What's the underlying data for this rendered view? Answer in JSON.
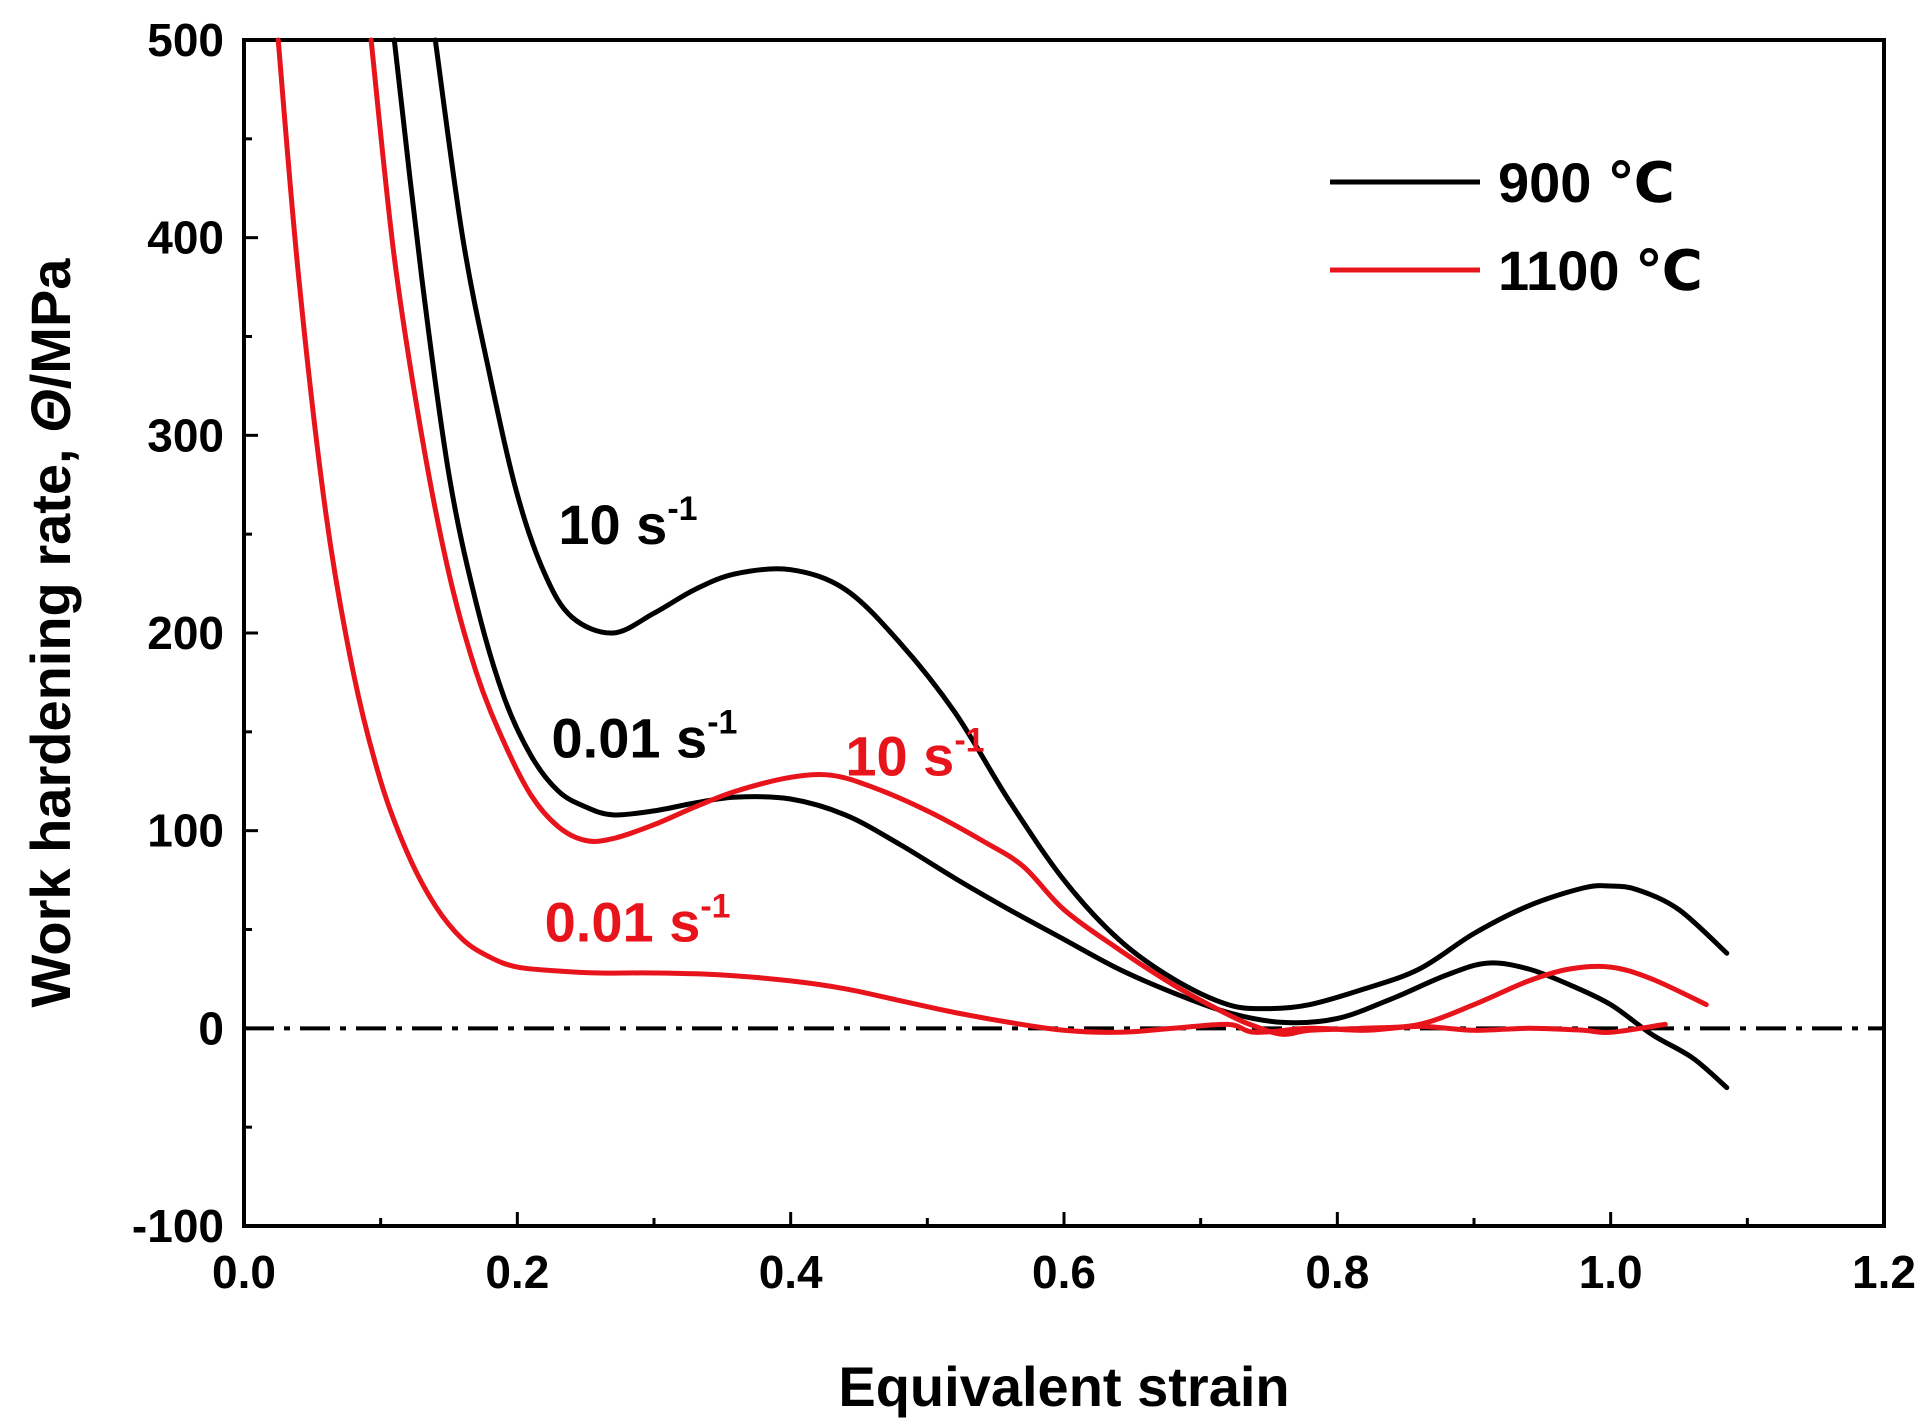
{
  "chart_data": {
    "type": "line",
    "title": "",
    "xlabel": "Equivalent strain",
    "ylabel_prefix": "Work hardening rate, ",
    "ylabel_symbol": "Θ",
    "ylabel_unit": "/MPa",
    "xlim": [
      0.0,
      1.2
    ],
    "ylim": [
      -100,
      500
    ],
    "xticks": [
      0.0,
      0.2,
      0.4,
      0.6,
      0.8,
      1.0,
      1.2
    ],
    "xtick_labels": [
      "0.0",
      "0.2",
      "0.4",
      "0.6",
      "0.8",
      "1.0",
      "1.2"
    ],
    "yticks": [
      -100,
      0,
      100,
      200,
      300,
      400,
      500
    ],
    "ytick_labels": [
      "-100",
      "0",
      "100",
      "200",
      "300",
      "400",
      "500"
    ],
    "grid": false,
    "reference_line": {
      "y": 0,
      "style": "dash-dot",
      "color": "#000000"
    },
    "legend": {
      "position": "top-right",
      "entries": [
        {
          "label": "900 ℃",
          "color": "#000000"
        },
        {
          "label": "1100 ℃",
          "color": "#e8141c"
        }
      ]
    },
    "annotations": [
      {
        "base": "10 s",
        "exp": "-1",
        "color": "#000000",
        "x": 0.23,
        "y": 245
      },
      {
        "base": "0.01 s",
        "exp": "-1",
        "color": "#000000",
        "x": 0.225,
        "y": 137
      },
      {
        "base": "10 s",
        "exp": "-1",
        "color": "#e8141c",
        "x": 0.44,
        "y": 128
      },
      {
        "base": "0.01 s",
        "exp": "-1",
        "color": "#e8141c",
        "x": 0.22,
        "y": 44
      }
    ],
    "series": [
      {
        "name": "900 ℃, 10 s-1",
        "color": "#000000",
        "points": [
          [
            0.14,
            500
          ],
          [
            0.16,
            400
          ],
          [
            0.18,
            330
          ],
          [
            0.2,
            270
          ],
          [
            0.22,
            230
          ],
          [
            0.24,
            208
          ],
          [
            0.27,
            200
          ],
          [
            0.3,
            210
          ],
          [
            0.33,
            222
          ],
          [
            0.36,
            230
          ],
          [
            0.4,
            232
          ],
          [
            0.44,
            222
          ],
          [
            0.48,
            195
          ],
          [
            0.52,
            160
          ],
          [
            0.56,
            115
          ],
          [
            0.6,
            75
          ],
          [
            0.64,
            45
          ],
          [
            0.68,
            25
          ],
          [
            0.72,
            12
          ],
          [
            0.75,
            10
          ],
          [
            0.78,
            12
          ],
          [
            0.82,
            20
          ],
          [
            0.86,
            30
          ],
          [
            0.9,
            48
          ],
          [
            0.94,
            62
          ],
          [
            0.98,
            71
          ],
          [
            1.0,
            72
          ],
          [
            1.02,
            70
          ],
          [
            1.05,
            60
          ],
          [
            1.085,
            38
          ]
        ]
      },
      {
        "name": "900 ℃, 0.01 s-1",
        "color": "#000000",
        "points": [
          [
            0.11,
            500
          ],
          [
            0.13,
            380
          ],
          [
            0.15,
            280
          ],
          [
            0.17,
            215
          ],
          [
            0.19,
            168
          ],
          [
            0.21,
            138
          ],
          [
            0.23,
            120
          ],
          [
            0.25,
            112
          ],
          [
            0.27,
            108
          ],
          [
            0.3,
            110
          ],
          [
            0.33,
            114
          ],
          [
            0.36,
            117
          ],
          [
            0.4,
            116
          ],
          [
            0.44,
            108
          ],
          [
            0.48,
            93
          ],
          [
            0.52,
            76
          ],
          [
            0.56,
            60
          ],
          [
            0.6,
            45
          ],
          [
            0.64,
            30
          ],
          [
            0.68,
            18
          ],
          [
            0.72,
            8
          ],
          [
            0.76,
            3
          ],
          [
            0.8,
            5
          ],
          [
            0.84,
            15
          ],
          [
            0.88,
            27
          ],
          [
            0.91,
            33
          ],
          [
            0.94,
            30
          ],
          [
            0.97,
            22
          ],
          [
            1.0,
            12
          ],
          [
            1.03,
            -3
          ],
          [
            1.06,
            -15
          ],
          [
            1.085,
            -30
          ]
        ]
      },
      {
        "name": "1100 ℃, 10 s-1",
        "color": "#e8141c",
        "points": [
          [
            0.093,
            500
          ],
          [
            0.11,
            390
          ],
          [
            0.13,
            300
          ],
          [
            0.15,
            230
          ],
          [
            0.17,
            180
          ],
          [
            0.19,
            145
          ],
          [
            0.21,
            118
          ],
          [
            0.23,
            102
          ],
          [
            0.25,
            95
          ],
          [
            0.27,
            96
          ],
          [
            0.3,
            103
          ],
          [
            0.33,
            112
          ],
          [
            0.36,
            120
          ],
          [
            0.4,
            127
          ],
          [
            0.43,
            128
          ],
          [
            0.46,
            122
          ],
          [
            0.5,
            110
          ],
          [
            0.54,
            95
          ],
          [
            0.57,
            82
          ],
          [
            0.6,
            60
          ],
          [
            0.64,
            40
          ],
          [
            0.68,
            22
          ],
          [
            0.72,
            7
          ],
          [
            0.74,
            1
          ],
          [
            0.76,
            -3
          ],
          [
            0.78,
            -1
          ],
          [
            0.82,
            0
          ],
          [
            0.86,
            2
          ],
          [
            0.9,
            12
          ],
          [
            0.94,
            24
          ],
          [
            0.97,
            30
          ],
          [
            1.0,
            31
          ],
          [
            1.03,
            25
          ],
          [
            1.07,
            12
          ]
        ]
      },
      {
        "name": "1100 ℃, 0.01 s-1",
        "color": "#e8141c",
        "points": [
          [
            0.025,
            500
          ],
          [
            0.04,
            380
          ],
          [
            0.06,
            260
          ],
          [
            0.08,
            180
          ],
          [
            0.1,
            125
          ],
          [
            0.12,
            88
          ],
          [
            0.14,
            62
          ],
          [
            0.16,
            45
          ],
          [
            0.18,
            36
          ],
          [
            0.2,
            31
          ],
          [
            0.23,
            29
          ],
          [
            0.26,
            28
          ],
          [
            0.3,
            28
          ],
          [
            0.35,
            27
          ],
          [
            0.4,
            24
          ],
          [
            0.44,
            20
          ],
          [
            0.48,
            14
          ],
          [
            0.52,
            8
          ],
          [
            0.56,
            3
          ],
          [
            0.6,
            -1
          ],
          [
            0.64,
            -2
          ],
          [
            0.68,
            0
          ],
          [
            0.72,
            2
          ],
          [
            0.74,
            -2
          ],
          [
            0.78,
            0
          ],
          [
            0.82,
            -1
          ],
          [
            0.86,
            1
          ],
          [
            0.9,
            -1
          ],
          [
            0.94,
            0
          ],
          [
            0.98,
            -1
          ],
          [
            1.0,
            -2
          ],
          [
            1.04,
            2
          ]
        ]
      }
    ]
  }
}
